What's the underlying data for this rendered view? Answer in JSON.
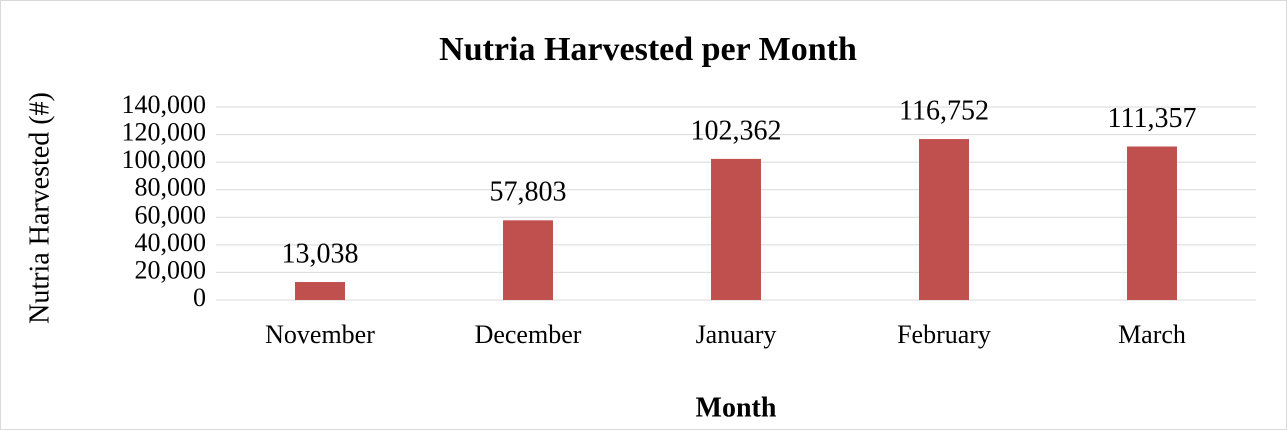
{
  "chart_data": {
    "type": "bar",
    "title": "Nutria Harvested per Month",
    "y_label": "Nutria Harvested (#)",
    "x_label": "Month",
    "categories": [
      "November",
      "December",
      "January",
      "February",
      "March"
    ],
    "values": [
      13038,
      57803,
      102362,
      116752,
      111357
    ],
    "value_labels": [
      "13,038",
      "57,803",
      "102,362",
      "116,752",
      "111,357"
    ],
    "color": "#c0504d",
    "ylim": [
      0,
      140000
    ],
    "yticks": [
      0,
      {
        "value": 20000,
        "label": "20,000"
      },
      {
        "value": 40000,
        "label": "40,000"
      },
      {
        "value": 60000,
        "label": "60,000"
      },
      {
        "value": 80000,
        "label": "80,000"
      },
      {
        "value": 100000,
        "label": "100,000"
      },
      {
        "value": 120000,
        "label": "120,000"
      },
      {
        "value": 140000,
        "label": "140,000"
      }
    ],
    "grid": true
  }
}
